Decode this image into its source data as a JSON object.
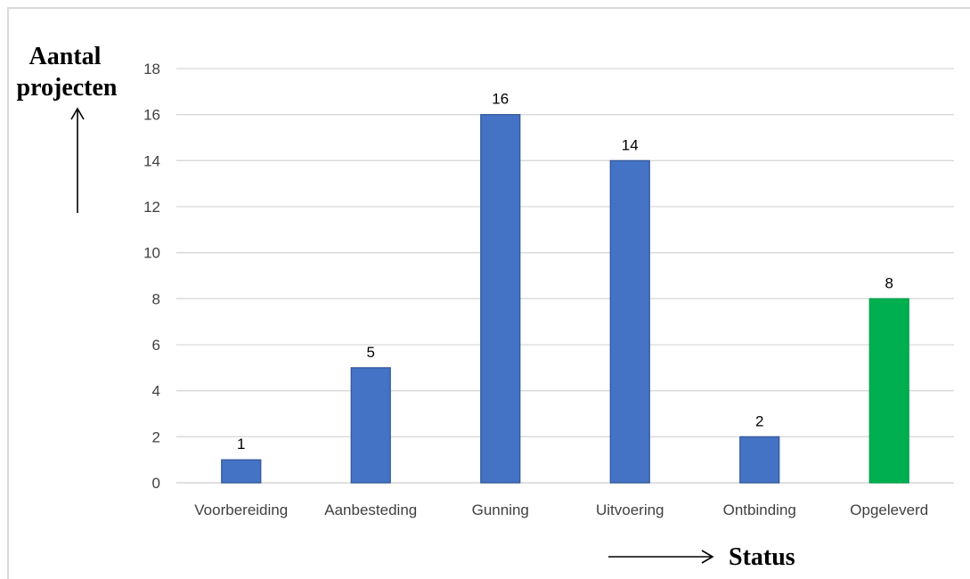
{
  "chart_data": {
    "type": "bar",
    "categories": [
      "Voorbereiding",
      "Aanbesteding",
      "Gunning",
      "Uitvoering",
      "Ontbinding",
      "Opgeleverd"
    ],
    "values": [
      1,
      5,
      16,
      14,
      2,
      8
    ],
    "data_labels": [
      "1",
      "5",
      "16",
      "14",
      "2",
      "8"
    ],
    "ylabel_lines": [
      "Aantal",
      "projecten"
    ],
    "xlabel": "Status",
    "ylim": [
      0,
      18
    ],
    "yticks": [
      0,
      2,
      4,
      6,
      8,
      10,
      12,
      14,
      16,
      18
    ],
    "grid": true,
    "legend": "none",
    "colors": {
      "bar": "#4472c4",
      "bar_border": "#2f5597",
      "highlight_bar": "#00b050",
      "highlight_border": "#00a048",
      "grid": "#d9d9d9"
    },
    "highlight_category": "Opgeleverd"
  }
}
